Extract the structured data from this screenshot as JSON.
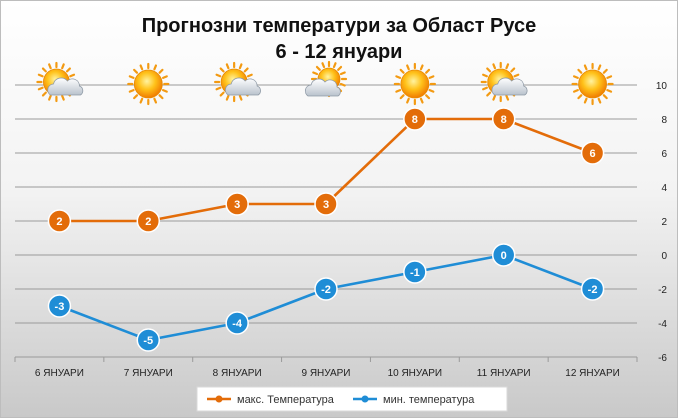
{
  "chart_data": {
    "type": "line",
    "title": "Прогнозни температури за Област Русе",
    "subtitle": "6 - 12 януари",
    "categories": [
      "6 ЯНУАРИ",
      "7 ЯНУАРИ",
      "8 ЯНУАРИ",
      "9 ЯНУАРИ",
      "10 ЯНУАРИ",
      "11 ЯНУАРИ",
      "12 ЯНУАРИ"
    ],
    "series": [
      {
        "name": "макс. Температура",
        "values": [
          2,
          2,
          3,
          3,
          8,
          8,
          6
        ],
        "color": "#E36C09"
      },
      {
        "name": "мин. температура",
        "values": [
          -3,
          -5,
          -4,
          -2,
          -1,
          0,
          -2
        ],
        "color": "#1F8DD6"
      }
    ],
    "data_labels": {
      "max": [
        "2",
        "2",
        "3",
        "3",
        "8",
        "8",
        "6"
      ],
      "min": [
        "-3",
        "-5",
        "-4",
        "-2",
        "-1",
        "0",
        "-2"
      ]
    },
    "weather_icons": [
      "sun-cloud-icon",
      "sun-icon",
      "sun-cloud-icon",
      "cloud-sun-icon",
      "sun-icon",
      "sun-cloud-icon",
      "sun-icon"
    ],
    "y_axis": {
      "position": "right",
      "min": -6,
      "max": 10,
      "step": 2,
      "ticks": [
        "10",
        "8",
        "6",
        "4",
        "2",
        "0",
        "-2",
        "-4",
        "-6"
      ]
    },
    "grid": true,
    "legend": "bottom"
  }
}
